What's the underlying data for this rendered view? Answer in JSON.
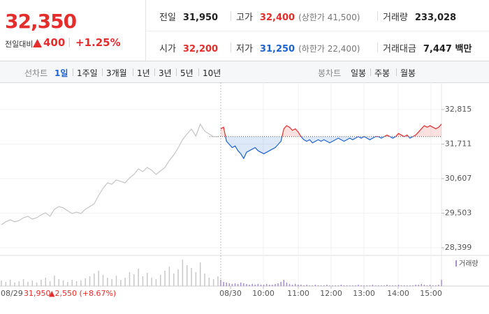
{
  "quote": {
    "price": "32,350",
    "change_label": "전일대비",
    "change": "400",
    "rate": "+1.25%",
    "stats": [
      [
        {
          "label": "전일",
          "value": "31,950"
        },
        {
          "label": "고가",
          "value": "32,400",
          "note": "(상한가 41,500)"
        },
        {
          "label": "거래량",
          "value": "233,028"
        }
      ],
      [
        {
          "label": "시가",
          "value": "32,200"
        },
        {
          "label": "저가",
          "value": "31,250",
          "note": "(하한가 22,400)"
        },
        {
          "label": "거래대금",
          "value": "7,447 백만"
        }
      ]
    ]
  },
  "tabs": {
    "line_label": "선차트",
    "line": [
      "1일",
      "1주일",
      "3개월",
      "1년",
      "3년",
      "5년",
      "10년"
    ],
    "line_active": 0,
    "candle_label": "봉차트",
    "candle": [
      "일봉",
      "주봉",
      "월봉"
    ]
  },
  "chart_data": {
    "type": "line",
    "ylim": [
      28176,
      33194
    ],
    "yticks": [
      {
        "value": 32815,
        "label": "32,815"
      },
      {
        "value": 31711,
        "label": "31,711"
      },
      {
        "value": 30607,
        "label": "30,607"
      },
      {
        "value": 29503,
        "label": "29,503"
      },
      {
        "value": 28399,
        "label": "28,399"
      }
    ],
    "grid": true,
    "reference": 31950,
    "x_labels": [
      "08/30",
      "10:00",
      "11:00",
      "12:00",
      "13:00",
      "14:00",
      "15:00"
    ],
    "annotation": {
      "date": "08/29",
      "price": "31,950",
      "change": "▲2,550 (+8.67%)"
    },
    "series": [
      {
        "color": "#c4c4c4",
        "values": [
          29135,
          29225,
          29292,
          29225,
          29269,
          29358,
          29403,
          29314,
          29358,
          29448,
          29515,
          29403,
          29626,
          29715,
          29671,
          29581,
          29492,
          29537,
          29492,
          29626,
          29715,
          29804,
          30072,
          30295,
          30473,
          30429,
          30563,
          30518,
          30473,
          30630,
          30741,
          30919,
          30830,
          30964,
          30875,
          30741,
          30853,
          30964,
          31187,
          31365,
          31588,
          31856,
          32034,
          32191,
          31968,
          32347,
          32124,
          32034,
          31945,
          31950
        ]
      },
      {
        "color": "#1e63d1",
        "color_up": "#e52d2d",
        "values": [
          32200,
          32250,
          31800,
          31700,
          31600,
          31650,
          31500,
          31400,
          31250,
          31450,
          31500,
          31550,
          31600,
          31500,
          31450,
          31400,
          31450,
          31500,
          31550,
          31600,
          31700,
          31800,
          32200,
          32300,
          32250,
          32150,
          32200,
          32100,
          31950,
          31850,
          31800,
          31850,
          31750,
          31800,
          31850,
          31800,
          31850,
          31800,
          31750,
          31800,
          31850,
          31900,
          31850,
          31800,
          31850,
          31900,
          31850,
          31900,
          31950,
          31900,
          31950,
          31900,
          31850,
          31900,
          31950,
          31950,
          31900,
          31950,
          32000,
          31950,
          31900,
          31950,
          32050,
          32000,
          31950,
          32000,
          31900,
          31950,
          32000,
          32100,
          32200,
          32300,
          32250,
          32300,
          32250,
          32200,
          32250,
          32350
        ]
      }
    ],
    "volume": {
      "name": "거래량",
      "color": "#a58fd0",
      "prior_color": "#c8c8c8",
      "ylim": [
        0,
        40000
      ],
      "prior": [
        8000,
        6000,
        9000,
        5000,
        7000,
        10000,
        6000,
        8000,
        5000,
        9000,
        12000,
        7000,
        15000,
        10000,
        8000,
        6000,
        9000,
        7000,
        8000,
        11000,
        14000,
        18000,
        22000,
        16000,
        12000,
        10000,
        15000,
        9000,
        12000,
        20000,
        17000,
        25000,
        14000,
        19000,
        12000,
        10000,
        16000,
        22000,
        28000,
        18000,
        24000,
        38000,
        30000,
        26000,
        20000,
        34000,
        18000,
        12000,
        10000,
        14000
      ],
      "values": [
        9000,
        6000,
        5000,
        4000,
        3000,
        4000,
        3000,
        5000,
        4000,
        3000,
        2000,
        3000,
        2000,
        3000,
        2000,
        2000,
        3000,
        2000,
        2000,
        3000,
        4000,
        6000,
        9000,
        5000,
        3000,
        2000,
        3000,
        2000,
        2000,
        1000,
        2000,
        1000,
        1000,
        2000,
        1000,
        1000,
        1000,
        2000,
        1000,
        1000,
        1000,
        1000,
        2000,
        1000,
        1000,
        1000,
        1000,
        1000,
        2000,
        1000,
        1000,
        1000,
        1000,
        2000,
        1000,
        1000,
        1000,
        1000,
        2000,
        1000,
        1000,
        1000,
        2000,
        1000,
        1000,
        1000,
        1000,
        1000,
        2000,
        2000,
        3000,
        2000,
        1000,
        2000,
        1000,
        1000,
        2000,
        9000
      ]
    }
  }
}
